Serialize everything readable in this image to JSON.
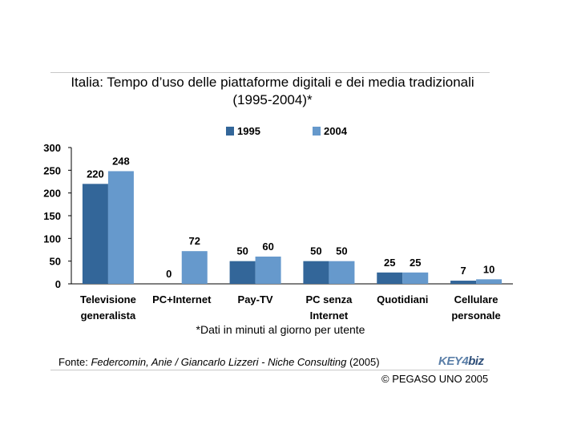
{
  "title_line1": "Italia: Tempo d’uso delle piattaforme digitali e dei media tradizionali",
  "title_line2": "(1995-2004)*",
  "footnote": "*Dati in minuti al giorno per utente",
  "source": {
    "prefix": "Fonte: ",
    "authors": "Federcomin, Anie / Giancarlo Lizzeri - Niche Consulting",
    "year": " (2005)"
  },
  "logo": {
    "part1": "KEY4",
    "part2": "biz"
  },
  "copyright": "© PEGASO UNO 2005",
  "colors": {
    "series_1995": "#336699",
    "series_2004": "#6699cc"
  },
  "chart_data": {
    "type": "bar",
    "categories": [
      [
        "Televisione",
        "generalista"
      ],
      [
        "PC+Internet"
      ],
      [
        "Pay-TV"
      ],
      [
        "PC senza",
        "Internet"
      ],
      [
        "Quotidiani"
      ],
      [
        "Cellulare",
        "personale"
      ]
    ],
    "series": [
      {
        "name": "1995",
        "values": [
          220,
          0,
          50,
          50,
          25,
          7
        ]
      },
      {
        "name": "2004",
        "values": [
          248,
          72,
          60,
          50,
          25,
          10
        ]
      }
    ],
    "ylim": [
      0,
      300
    ],
    "yticks": [
      "0",
      "50",
      "100",
      "150",
      "200",
      "250",
      "300"
    ],
    "legend": "top-center",
    "grid": false
  }
}
